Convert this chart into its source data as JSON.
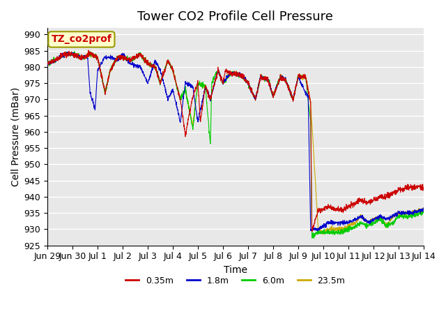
{
  "title": "Tower CO2 Profile Cell Pressure",
  "xlabel": "Time",
  "ylabel": "Cell Pressure (mBar)",
  "ylim": [
    925,
    992
  ],
  "yticks": [
    925,
    930,
    935,
    940,
    945,
    950,
    955,
    960,
    965,
    970,
    975,
    980,
    985,
    990
  ],
  "legend_label": "TZ_co2prof",
  "legend_box_color": "#ffffcc",
  "legend_box_edge": "#999900",
  "series_colors": [
    "#cc0000",
    "#0000cc",
    "#00cc00",
    "#ccaa00"
  ],
  "series_labels": [
    "0.35m",
    "1.8m",
    "6.0m",
    "23.5m"
  ],
  "bg_color": "#e8e8e8",
  "plot_bg": "#e8e8e8",
  "grid_color": "white",
  "title_fontsize": 13,
  "axis_label_fontsize": 10,
  "tick_fontsize": 9
}
